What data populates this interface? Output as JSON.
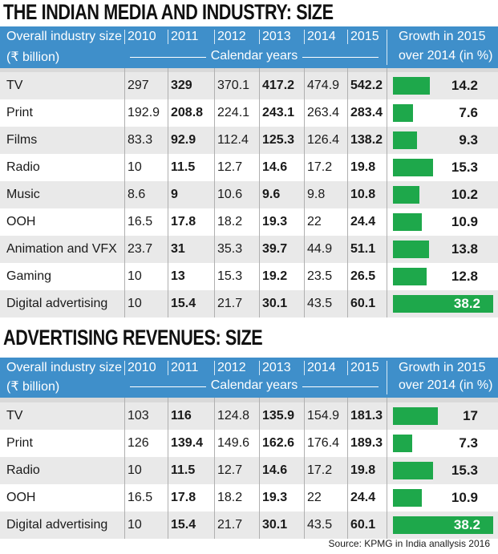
{
  "chart_data": [
    {
      "type": "table",
      "title": "THE INDIAN MEDIA AND INDUSTRY: SIZE",
      "header": {
        "label_line1": "Overall industry size",
        "label_line2": "(₹ billion)",
        "years": [
          "2010",
          "2011",
          "2012",
          "2013",
          "2014",
          "2015"
        ],
        "calendar": "Calendar years",
        "growth_line1": "Growth in 2015",
        "growth_line2": "over 2014 (in %)"
      },
      "rows": [
        {
          "label": "TV",
          "values": [
            "297",
            "329",
            "370.1",
            "417.2",
            "474.9",
            "542.2"
          ],
          "growth": 14.2
        },
        {
          "label": "Print",
          "values": [
            "192.9",
            "208.8",
            "224.1",
            "243.1",
            "263.4",
            "283.4"
          ],
          "growth": 7.6
        },
        {
          "label": "Films",
          "values": [
            "83.3",
            "92.9",
            "112.4",
            "125.3",
            "126.4",
            "138.2"
          ],
          "growth": 9.3
        },
        {
          "label": "Radio",
          "values": [
            "10",
            "11.5",
            "12.7",
            "14.6",
            "17.2",
            "19.8"
          ],
          "growth": 15.3
        },
        {
          "label": "Music",
          "values": [
            "8.6",
            "9",
            "10.6",
            "9.6",
            "9.8",
            "10.8"
          ],
          "growth": 10.2
        },
        {
          "label": "OOH",
          "values": [
            "16.5",
            "17.8",
            "18.2",
            "19.3",
            "22",
            "24.4"
          ],
          "growth": 10.9
        },
        {
          "label": "Animation and VFX",
          "values": [
            "23.7",
            "31",
            "35.3",
            "39.7",
            "44.9",
            "51.1"
          ],
          "growth": 13.8
        },
        {
          "label": "Gaming",
          "values": [
            "10",
            "13",
            "15.3",
            "19.2",
            "23.5",
            "26.5"
          ],
          "growth": 12.8
        },
        {
          "label": "Digital advertising",
          "values": [
            "10",
            "15.4",
            "21.7",
            "30.1",
            "43.5",
            "60.1"
          ],
          "growth": 38.2
        }
      ]
    },
    {
      "type": "table",
      "title": "ADVERTISING  REVENUES: SIZE",
      "header": {
        "label_line1": "Overall industry size",
        "label_line2": "(₹ billion)",
        "years": [
          "2010",
          "2011",
          "2012",
          "2013",
          "2014",
          "2015"
        ],
        "calendar": "Calendar years",
        "growth_line1": "Growth in 2015",
        "growth_line2": "over 2014 (in %)"
      },
      "rows": [
        {
          "label": "TV",
          "values": [
            "103",
            "116",
            "124.8",
            "135.9",
            "154.9",
            "181.3"
          ],
          "growth": 17
        },
        {
          "label": "Print",
          "values": [
            "126",
            "139.4",
            "149.6",
            "162.6",
            "176.4",
            "189.3"
          ],
          "growth": 7.3
        },
        {
          "label": "Radio",
          "values": [
            "10",
            "11.5",
            "12.7",
            "14.6",
            "17.2",
            "19.8"
          ],
          "growth": 15.3
        },
        {
          "label": "OOH",
          "values": [
            "16.5",
            "17.8",
            "18.2",
            "19.3",
            "22",
            "24.4"
          ],
          "growth": 10.9
        },
        {
          "label": "Digital advertising",
          "values": [
            "10",
            "15.4",
            "21.7",
            "30.1",
            "43.5",
            "60.1"
          ],
          "growth": 38.2
        }
      ]
    }
  ],
  "source": "Source: KPMG in India anallysis 2016",
  "colors": {
    "header_bg": "#3f8fca",
    "bar": "#1ea84b",
    "alt_row": "#e9e9e9"
  }
}
